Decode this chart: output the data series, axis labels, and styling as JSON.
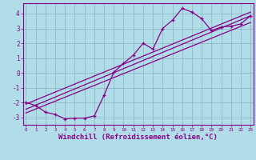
{
  "background_color": "#b0dde8",
  "grid_color": "#8ab0c0",
  "line_color": "#880088",
  "xlabel": "Windchill (Refroidissement éolien,°C)",
  "yticks": [
    -3,
    -2,
    -1,
    0,
    1,
    2,
    3,
    4
  ],
  "xticks": [
    0,
    1,
    2,
    3,
    4,
    5,
    6,
    7,
    8,
    9,
    10,
    11,
    12,
    13,
    14,
    15,
    16,
    17,
    18,
    19,
    20,
    21,
    22,
    23
  ],
  "xlim": [
    -0.3,
    23.3
  ],
  "ylim": [
    -3.5,
    4.7
  ],
  "line1_x": [
    0,
    1,
    2,
    3,
    4,
    5,
    6,
    7,
    8,
    9,
    10,
    11,
    12,
    13,
    14,
    15,
    16,
    17,
    18,
    19,
    20,
    21,
    22,
    23
  ],
  "line1_y": [
    -2.0,
    -2.2,
    -2.65,
    -2.8,
    -3.1,
    -3.05,
    -3.05,
    -2.9,
    -1.5,
    0.05,
    0.65,
    1.2,
    2.0,
    1.6,
    3.0,
    3.55,
    4.35,
    4.1,
    3.65,
    2.85,
    3.1,
    3.15,
    3.3,
    3.85
  ],
  "line2_x": [
    0,
    23
  ],
  "line2_y": [
    -2.45,
    3.85
  ],
  "line3_x": [
    0,
    23
  ],
  "line3_y": [
    -2.7,
    3.4
  ],
  "line4_x": [
    0,
    23
  ],
  "line4_y": [
    -2.1,
    4.1
  ]
}
